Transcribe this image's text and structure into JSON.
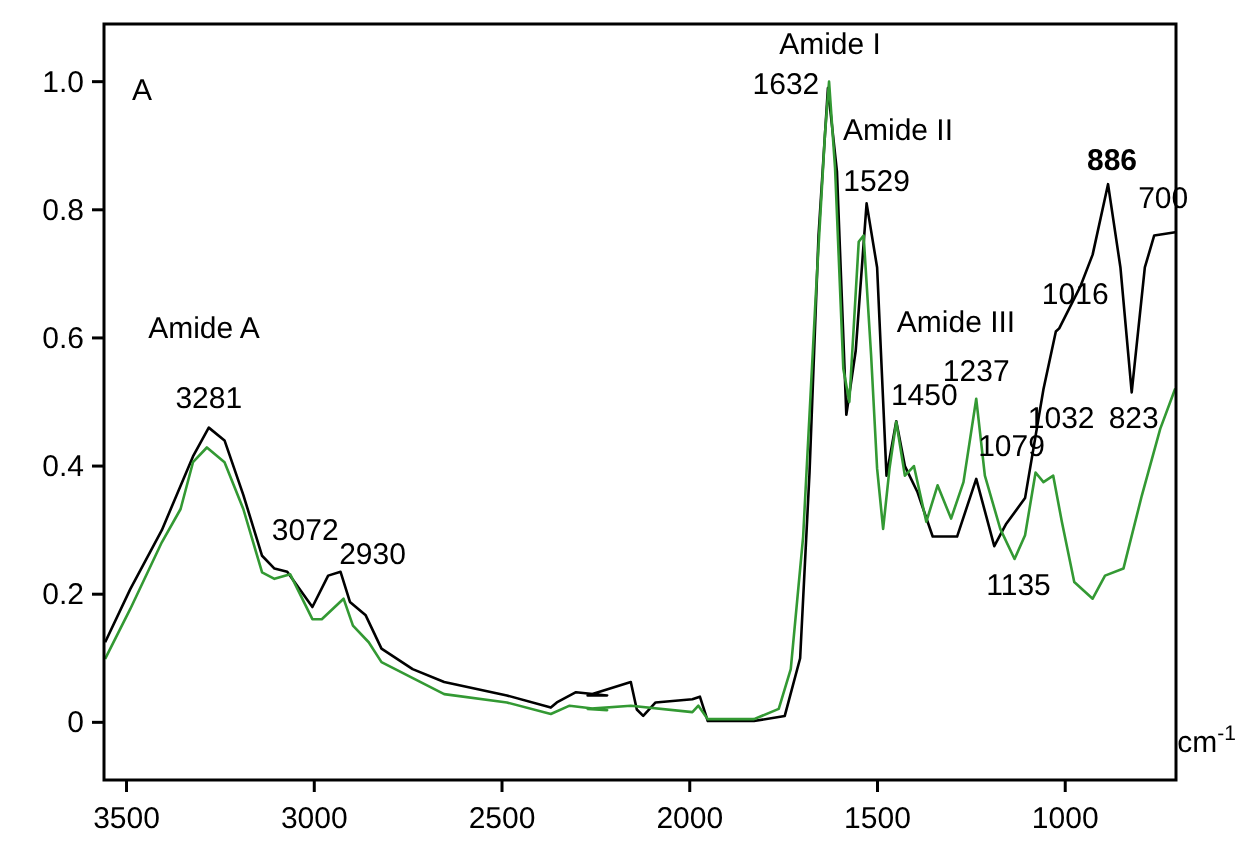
{
  "chart_data": {
    "type": "line",
    "xlabel": "cm$^{-1}$",
    "xlim": [
      3560,
      705
    ],
    "ylim": [
      -0.09,
      1.09
    ],
    "xticks": [
      3500,
      3000,
      2500,
      2000,
      1500,
      1000
    ],
    "yticks": [
      {
        "value": 0,
        "label": "0"
      },
      {
        "value": 0.2,
        "label": "0.2"
      },
      {
        "value": 0.4,
        "label": "0.4"
      },
      {
        "value": 0.6,
        "label": "0.6"
      },
      {
        "value": 0.8,
        "label": "0.8"
      },
      {
        "value": 1,
        "label": "1.0"
      }
    ],
    "grid": false,
    "line_style": "solid",
    "marker": "none",
    "series": [
      {
        "color": "#000000",
        "x": [
          3557,
          3490,
          3406,
          3323,
          3281,
          3239,
          3189,
          3139,
          3106,
          3072,
          3005,
          2963,
          2930,
          2905,
          2863,
          2821,
          2738,
          2654,
          2487,
          2370,
          2354,
          2303,
          2220,
          2272,
          2157,
          2141,
          2124,
          2091,
          1993,
          1973,
          1952,
          1829,
          1747,
          1706,
          1681,
          1657,
          1632,
          1608,
          1583,
          1558,
          1529,
          1501,
          1476,
          1450,
          1427,
          1394,
          1353,
          1288,
          1237,
          1189,
          1157,
          1107,
          1058,
          1025,
          1016,
          960,
          927,
          886,
          853,
          823,
          788,
          763,
          707
        ],
        "values": [
          0.125,
          0.208,
          0.3,
          0.415,
          0.46,
          0.44,
          0.355,
          0.26,
          0.24,
          0.235,
          0.18,
          0.229,
          0.235,
          0.188,
          0.167,
          0.115,
          0.083,
          0.063,
          0.042,
          0.023,
          0.031,
          0.047,
          0.042,
          0.042,
          0.063,
          0.02,
          0.01,
          0.031,
          0.036,
          0.04,
          0.002,
          0.002,
          0.01,
          0.1,
          0.39,
          0.76,
          0.99,
          0.86,
          0.48,
          0.58,
          0.81,
          0.71,
          0.385,
          0.47,
          0.4,
          0.36,
          0.29,
          0.29,
          0.38,
          0.275,
          0.31,
          0.35,
          0.52,
          0.61,
          0.615,
          0.68,
          0.73,
          0.84,
          0.71,
          0.515,
          0.71,
          0.76,
          0.765
        ]
      },
      {
        "color": "#339933",
        "x": [
          3557,
          3490,
          3406,
          3356,
          3323,
          3286,
          3239,
          3189,
          3139,
          3106,
          3064,
          3005,
          2980,
          2922,
          2897,
          2855,
          2821,
          2654,
          2487,
          2370,
          2320,
          2220,
          2272,
          2157,
          1993,
          1977,
          1952,
          1829,
          1763,
          1731,
          1698,
          1665,
          1640,
          1629,
          1613,
          1591,
          1575,
          1550,
          1537,
          1517,
          1501,
          1485,
          1468,
          1450,
          1427,
          1403,
          1370,
          1340,
          1304,
          1271,
          1237,
          1214,
          1173,
          1135,
          1107,
          1079,
          1058,
          1032,
          1009,
          976,
          927,
          894,
          845,
          796,
          747,
          707
        ],
        "values": [
          0.099,
          0.177,
          0.281,
          0.333,
          0.406,
          0.429,
          0.406,
          0.333,
          0.234,
          0.224,
          0.231,
          0.161,
          0.161,
          0.193,
          0.151,
          0.125,
          0.094,
          0.044,
          0.031,
          0.013,
          0.026,
          0.019,
          0.021,
          0.026,
          0.016,
          0.026,
          0.005,
          0.005,
          0.021,
          0.083,
          0.29,
          0.66,
          0.917,
          1.0,
          0.865,
          0.552,
          0.5,
          0.75,
          0.76,
          0.573,
          0.396,
          0.302,
          0.396,
          0.469,
          0.385,
          0.4,
          0.313,
          0.37,
          0.318,
          0.375,
          0.505,
          0.385,
          0.302,
          0.255,
          0.292,
          0.39,
          0.375,
          0.385,
          0.313,
          0.219,
          0.193,
          0.229,
          0.24,
          0.354,
          0.458,
          0.521
        ]
      }
    ],
    "annotations": [
      "A",
      "Amide A",
      "Amide I",
      "Amide II",
      "Amide III",
      {
        "text": "3281",
        "x": 3281,
        "y": 0.46
      },
      {
        "text": "3072",
        "x": 3072,
        "y": 0.235
      },
      {
        "text": "2930",
        "x": 2930,
        "y": 0.235
      },
      {
        "text": "1632",
        "x": 1632,
        "y": 0.99
      },
      {
        "text": "1529",
        "x": 1529,
        "y": 0.81
      },
      {
        "text": "1450",
        "x": 1450,
        "y": 0.47
      },
      {
        "text": "1237",
        "x": 1237,
        "y": 0.505
      },
      {
        "text": "1016",
        "x": 1016,
        "y": 0.615
      },
      {
        "text": "886",
        "x": 886,
        "y": 0.84
      },
      {
        "text": "700",
        "x": 707,
        "y": 0.765
      },
      {
        "text": "1032",
        "x": 1032,
        "y": 0.385
      },
      {
        "text": "1079",
        "x": 1079,
        "y": 0.39
      },
      {
        "text": "823",
        "x": 823,
        "y": 0.515
      },
      {
        "text": "1135",
        "x": 1135,
        "y": 0.255
      }
    ]
  }
}
